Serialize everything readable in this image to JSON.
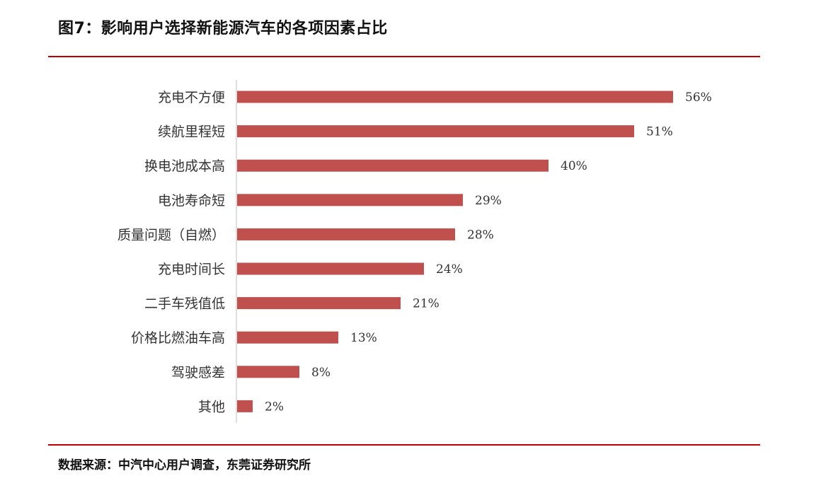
{
  "title": "图7：影响用户选择新能源汽车的各项因素占比",
  "source": "数据来源：中汽中心用户调查，东莞证券研究所",
  "colors": {
    "bar": "#c0504d",
    "rule": "#c00000",
    "axis": "#bfbfbf"
  },
  "chart_data": {
    "type": "bar",
    "orientation": "horizontal",
    "categories": [
      "充电不方便",
      "续航里程短",
      "换电池成本高",
      "电池寿命短",
      "质量问题（自燃）",
      "充电时间长",
      "二手车残值低",
      "价格比燃油车高",
      "驾驶感差",
      "其他"
    ],
    "values": [
      56,
      51,
      40,
      29,
      28,
      24,
      21,
      13,
      8,
      2
    ],
    "value_labels": [
      "56%",
      "51%",
      "40%",
      "29%",
      "28%",
      "24%",
      "21%",
      "13%",
      "8%",
      "2%"
    ],
    "unit": "%",
    "xlim": [
      0,
      56
    ],
    "grid": false,
    "legend": "none"
  }
}
